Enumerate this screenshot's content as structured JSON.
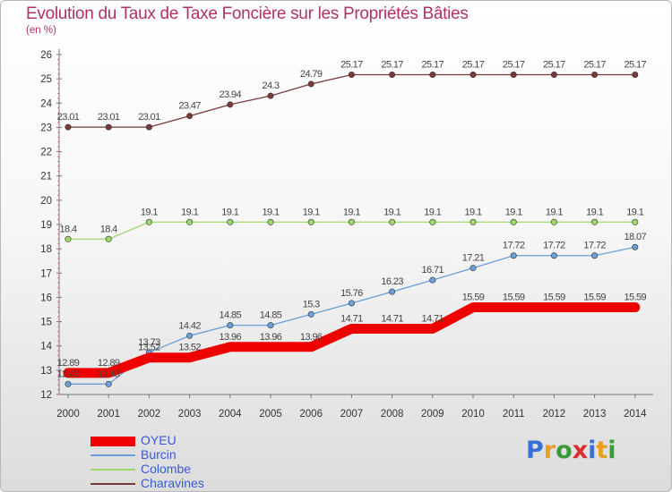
{
  "title": "Evolution du Taux de Taxe Foncière sur les Propriétés Bâties",
  "unit_label": "(en %)",
  "logo": {
    "letters": [
      "P",
      "r",
      "o",
      "x",
      "i",
      "t",
      "i"
    ],
    "colors": [
      "#3b6fd8",
      "#e8a020",
      "#3a9a3a",
      "#d83030",
      "#3b6fd8",
      "#e8a020",
      "#3a9a3a"
    ]
  },
  "chart_data": {
    "type": "line",
    "title": "Evolution du Taux de Taxe Foncière sur les Propriétés Bâties",
    "ylabel": "(en %)",
    "xlabel": "",
    "x": [
      "2000",
      "2001",
      "2002",
      "2003",
      "2004",
      "2005",
      "2006",
      "2007",
      "2008",
      "2009",
      "2010",
      "2011",
      "2012",
      "2013",
      "2014"
    ],
    "ylim": [
      12,
      26
    ],
    "yticks": [
      12,
      13,
      14,
      15,
      16,
      17,
      18,
      19,
      20,
      21,
      22,
      23,
      24,
      25,
      26
    ],
    "grid": false,
    "legend_position": "bottom-left",
    "series": [
      {
        "name": "OYEU",
        "color": "#ee0000",
        "values": [
          12.89,
          12.89,
          13.52,
          13.52,
          13.96,
          13.96,
          13.96,
          14.71,
          14.71,
          14.71,
          15.59,
          15.59,
          15.59,
          15.59,
          15.59
        ],
        "labels": [
          "12.89",
          "12.89",
          "13.52",
          "13.52",
          "13.96",
          "13.96",
          "13.96",
          "14.71",
          "14.71",
          "14.71",
          "15.59",
          "15.59",
          "15.59",
          "15.59",
          "15.59"
        ]
      },
      {
        "name": "Burcin",
        "color": "#6a9fd8",
        "values": [
          12.43,
          12.43,
          13.73,
          14.42,
          14.85,
          14.85,
          15.3,
          15.76,
          16.23,
          16.71,
          17.21,
          17.72,
          17.72,
          17.72,
          18.07
        ],
        "labels": [
          "12.43",
          "12.43",
          "13.73",
          "14.42",
          "14.85",
          "14.85",
          "15.3",
          "15.76",
          "16.23",
          "16.71",
          "17.21",
          "17.72",
          "17.72",
          "17.72",
          "18.07"
        ]
      },
      {
        "name": "Colombe",
        "color": "#9ed86a",
        "values": [
          18.4,
          18.4,
          19.1,
          19.1,
          19.1,
          19.1,
          19.1,
          19.1,
          19.1,
          19.1,
          19.1,
          19.1,
          19.1,
          19.1,
          19.1
        ],
        "labels": [
          "18.4",
          "18.4",
          "19.1",
          "19.1",
          "19.1",
          "19.1",
          "19.1",
          "19.1",
          "19.1",
          "19.1",
          "19.1",
          "19.1",
          "19.1",
          "19.1",
          "19.1"
        ]
      },
      {
        "name": "Charavines",
        "color": "#7a3a3a",
        "values": [
          23.01,
          23.01,
          23.01,
          23.47,
          23.94,
          24.3,
          24.79,
          25.17,
          25.17,
          25.17,
          25.17,
          25.17,
          25.17,
          25.17,
          25.17
        ],
        "labels": [
          "23.01",
          "23.01",
          "23.01",
          "23.47",
          "23.94",
          "24.3",
          "24.79",
          "25.17",
          "25.17",
          "25.17",
          "25.17",
          "25.17",
          "25.17",
          "25.17",
          "25.17"
        ]
      }
    ]
  }
}
